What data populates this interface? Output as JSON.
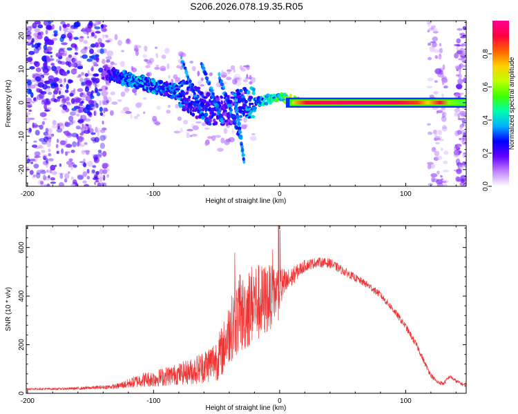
{
  "title": "S206.2026.078.19.35.R05",
  "chart_data": [
    {
      "type": "heatmap",
      "title": "S206.2026.078.19.35.R05",
      "xlabel": "Height of straight line (km)",
      "ylabel": "Frequency (Hz)",
      "xlim": [
        -201,
        148
      ],
      "ylim": [
        -25,
        24.5
      ],
      "xticks": [
        -200,
        -100,
        0,
        100
      ],
      "yticks": [
        -20,
        -10,
        0,
        10,
        20
      ],
      "colorbar": {
        "label": "Normalized spectral amplitude",
        "range": [
          0,
          1
        ],
        "ticks": [
          0.0,
          0.2,
          0.4,
          0.6,
          0.8
        ],
        "colors": [
          "#ffffff",
          "#c080ff",
          "#6000ff",
          "#0000ff",
          "#00b0ff",
          "#00ffb0",
          "#40ff00",
          "#c0ff00",
          "#ffd000",
          "#ff6000",
          "#ff0040",
          "#ff0090"
        ]
      },
      "trace": {
        "x": [
          -200,
          -180,
          -160,
          -140,
          -130,
          -120,
          -110,
          -100,
          -90,
          -80,
          -70,
          -60,
          -50,
          -40,
          -30,
          -20,
          -10,
          0,
          5,
          10,
          15,
          20,
          50,
          80,
          110,
          120,
          130,
          140,
          148
        ],
        "freq": [
          15,
          13,
          11,
          9,
          8,
          7,
          6,
          5,
          4,
          3,
          1,
          -1,
          -3,
          -2,
          0,
          0,
          1,
          2,
          1,
          1,
          0,
          0,
          0,
          0,
          0,
          0,
          0,
          0,
          0
        ],
        "amplitude": [
          0.1,
          0.1,
          0.12,
          0.15,
          0.3,
          0.35,
          0.4,
          0.38,
          0.3,
          0.35,
          0.25,
          0.3,
          0.25,
          0.2,
          0.3,
          0.4,
          0.45,
          0.5,
          0.6,
          0.7,
          0.9,
          0.95,
          0.95,
          0.95,
          0.9,
          0.85,
          0.9,
          0.3,
          0.3
        ]
      }
    },
    {
      "type": "line",
      "title": "",
      "xlabel": "Height of straight line (km)",
      "ylabel": "SNR (10 * v/v)",
      "xlim": [
        -201,
        148
      ],
      "ylim": [
        0,
        690
      ],
      "xticks": [
        -200,
        -100,
        0,
        100
      ],
      "yticks": [
        0,
        200,
        400,
        600
      ],
      "color": "#ee3333",
      "series": [
        {
          "name": "SNR",
          "x": [
            -201,
            -180,
            -160,
            -140,
            -130,
            -120,
            -110,
            -100,
            -90,
            -80,
            -70,
            -60,
            -50,
            -45,
            -40,
            -35,
            -30,
            -25,
            -20,
            -15,
            -10,
            -5,
            0,
            5,
            10,
            15,
            20,
            30,
            40,
            50,
            60,
            70,
            80,
            90,
            100,
            110,
            115,
            120,
            125,
            130,
            135,
            140,
            148
          ],
          "values": [
            18,
            18,
            20,
            25,
            28,
            40,
            55,
            60,
            70,
            80,
            90,
            110,
            140,
            180,
            250,
            300,
            320,
            350,
            380,
            370,
            390,
            400,
            430,
            450,
            480,
            505,
            525,
            540,
            535,
            505,
            475,
            445,
            405,
            345,
            275,
            185,
            125,
            75,
            45,
            40,
            70,
            50,
            30
          ],
          "noise": [
            4,
            4,
            6,
            8,
            10,
            20,
            30,
            35,
            40,
            45,
            55,
            70,
            90,
            110,
            130,
            150,
            160,
            170,
            170,
            160,
            150,
            120,
            100,
            60,
            40,
            30,
            25,
            20,
            20,
            18,
            16,
            15,
            15,
            15,
            14,
            14,
            12,
            10,
            8,
            8,
            8,
            8,
            6
          ]
        }
      ]
    }
  ]
}
